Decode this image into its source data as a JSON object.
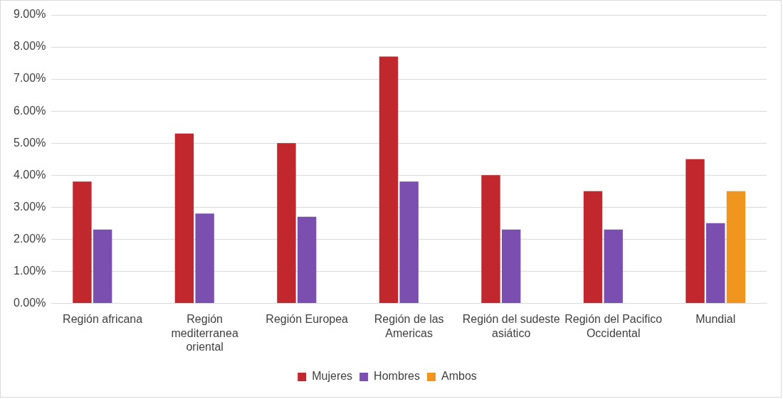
{
  "chart_data": {
    "type": "bar",
    "categories": [
      "Región africana",
      "Región mediterranea oriental",
      "Región Europea",
      "Región de las Americas",
      "Región del sudeste asiático",
      "Región del Pacifico Occidental",
      "Mundial"
    ],
    "series": [
      {
        "name": "Mujeres",
        "color": "#c0282d",
        "values": [
          3.8,
          5.3,
          5.0,
          7.7,
          4.0,
          3.5,
          4.5
        ]
      },
      {
        "name": "Hombres",
        "color": "#7a4fb0",
        "values": [
          2.3,
          2.8,
          2.7,
          3.8,
          2.3,
          2.3,
          2.5
        ]
      },
      {
        "name": "Ambos",
        "color": "#f0951e",
        "values": [
          null,
          null,
          null,
          null,
          null,
          null,
          3.5
        ]
      }
    ],
    "ylim": [
      0,
      9
    ],
    "yticks": [
      {
        "value": 0,
        "label": "0.00%"
      },
      {
        "value": 1,
        "label": "1.00%"
      },
      {
        "value": 2,
        "label": "2.00%"
      },
      {
        "value": 3,
        "label": "3.00%"
      },
      {
        "value": 4,
        "label": "4.00%"
      },
      {
        "value": 5,
        "label": "5.00%"
      },
      {
        "value": 6,
        "label": "6.00%"
      },
      {
        "value": 7,
        "label": "7.00%"
      },
      {
        "value": 8,
        "label": "8.00%"
      },
      {
        "value": 9,
        "label": "9.00%"
      }
    ],
    "grid": "y",
    "legend": "bottom"
  }
}
